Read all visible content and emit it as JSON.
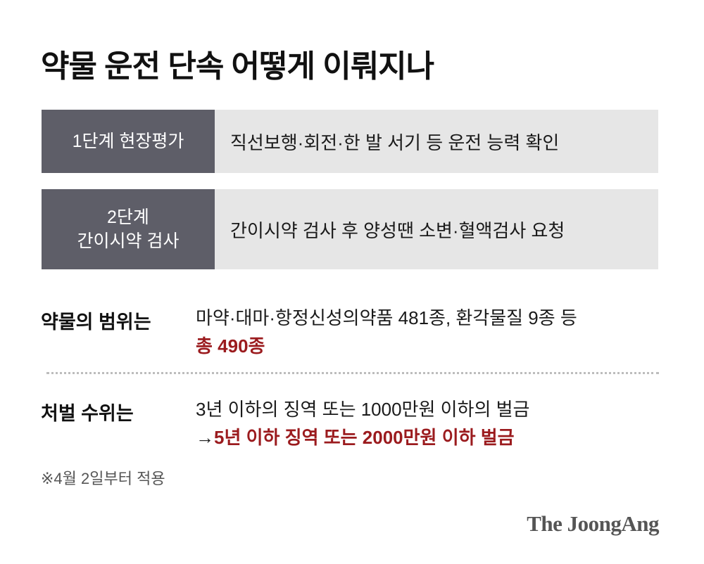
{
  "title": "약물 운전 단속 어떻게 이뤄지나",
  "steps": [
    {
      "label": "1단계 현장평가",
      "desc": "직선보행·회전·한 발 서기 등 운전 능력 확인"
    },
    {
      "label_line1": "2단계",
      "label_line2": "간이시약 검사",
      "desc": "간이시약 검사 후 양성땐 소변·혈액검사 요청"
    }
  ],
  "scope": {
    "heading": "약물의 범위는",
    "line1": "마약·대마·항정신성의약품 481종, 환각물질 9종 등",
    "total": "총 490종"
  },
  "penalty": {
    "heading": "처벌 수위는",
    "before": "3년 이하의 징역 또는 1000만원 이하의 벌금",
    "arrow": "→",
    "after": "5년 이하 징역 또는 2000만원 이하 벌금"
  },
  "note": "※4월 2일부터 적용",
  "logo": "The JoongAng",
  "colors": {
    "label_bg": "#5e5e68",
    "value_bg": "#e6e6e6",
    "accent_red": "#9b1b1e"
  }
}
